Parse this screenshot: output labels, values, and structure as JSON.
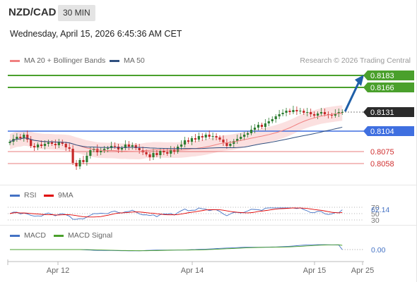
{
  "header": {
    "pair": "NZD/CAD",
    "timeframe": "30 MIN",
    "datetime": "Wednesday, April 15, 2026 6:45:36 AM CET",
    "credit": "Research © 2026 Trading Central"
  },
  "legends": {
    "main": [
      {
        "label": "MA 20 + Bollinger Bands",
        "color": "#f08080"
      },
      {
        "label": "MA 50",
        "color": "#2f4f7f"
      }
    ],
    "rsi": [
      {
        "label": "RSI",
        "color": "#4472c4"
      },
      {
        "label": "9MA",
        "color": "#e00000"
      }
    ],
    "macd": [
      {
        "label": "MACD",
        "color": "#4472c4"
      },
      {
        "label": "MACD Signal",
        "color": "#4aa02c"
      }
    ]
  },
  "colors": {
    "green_level": "#4aa02c",
    "blue_level": "#3f6fe0",
    "red_level": "#e05050",
    "current": "#2b2b2b",
    "arrow": "#1f5fa8",
    "bull": "#2e7d32",
    "bear": "#c62828",
    "band_fill": "#f9d3d3"
  },
  "chart_data": {
    "type": "candlestick",
    "x_ticks": [
      "Apr 12",
      "Apr 14",
      "Apr 15",
      "Apr 25"
    ],
    "y_range": [
      0.803,
      0.82
    ],
    "levels": [
      {
        "value": 0.8183,
        "label": "0.8183",
        "kind": "resistance"
      },
      {
        "value": 0.8166,
        "label": "0.8166",
        "kind": "resistance"
      },
      {
        "value": 0.8131,
        "label": "0.8131",
        "kind": "current"
      },
      {
        "value": 0.8104,
        "label": "0.8104",
        "kind": "pivot"
      },
      {
        "value": 0.8075,
        "label": "0.8075",
        "kind": "support"
      },
      {
        "value": 0.8058,
        "label": "0.8058",
        "kind": "support"
      }
    ],
    "closes": [
      0.8089,
      0.8093,
      0.8096,
      0.8094,
      0.8099,
      0.8092,
      0.8083,
      0.8081,
      0.8085,
      0.8083,
      0.8086,
      0.8088,
      0.8086,
      0.8084,
      0.8088,
      0.8086,
      0.8081,
      0.8079,
      0.8059,
      0.8054,
      0.8063,
      0.806,
      0.8069,
      0.8077,
      0.8079,
      0.8074,
      0.8076,
      0.8079,
      0.808,
      0.8083,
      0.8082,
      0.8078,
      0.808,
      0.8085,
      0.8082,
      0.8084,
      0.808,
      0.8077,
      0.8074,
      0.8071,
      0.8067,
      0.8073,
      0.807,
      0.8076,
      0.8074,
      0.8072,
      0.8078,
      0.8075,
      0.8082,
      0.8085,
      0.8091,
      0.8089,
      0.8094,
      0.8092,
      0.8097,
      0.8095,
      0.8099,
      0.8096,
      0.8097,
      0.8095,
      0.8092,
      0.8088,
      0.8083,
      0.8086,
      0.809,
      0.8093,
      0.8096,
      0.8099,
      0.8101,
      0.8106,
      0.8109,
      0.8113,
      0.811,
      0.8115,
      0.8118,
      0.8121,
      0.8125,
      0.8128,
      0.813,
      0.8133,
      0.8131,
      0.8134,
      0.8132,
      0.8133,
      0.813,
      0.8131,
      0.8128,
      0.8126,
      0.8129,
      0.8131,
      0.8128,
      0.8127,
      0.8126,
      0.8129,
      0.8131,
      0.8131
    ],
    "forecast_target": 0.8183,
    "rsi": {
      "value": 62.14,
      "value_label": "62.14",
      "ticks": [
        "70",
        "50",
        "30"
      ]
    },
    "macd": {
      "value": 0.0,
      "value_label": "0.00"
    }
  }
}
